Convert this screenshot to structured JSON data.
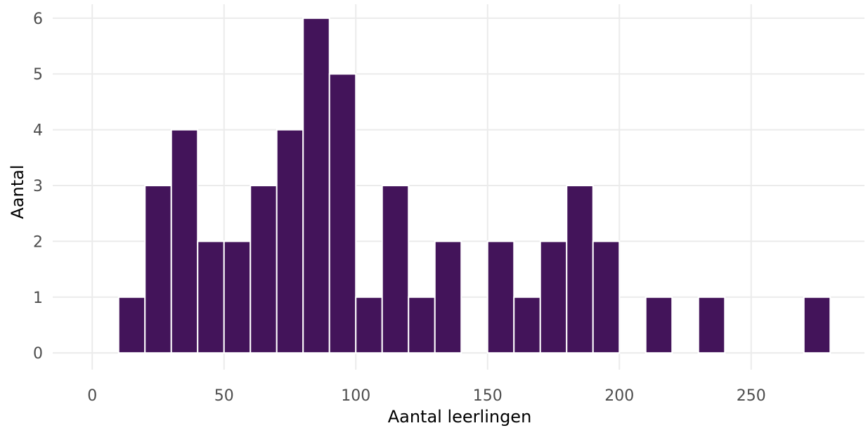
{
  "chart_data": {
    "type": "bar",
    "subtype": "histogram",
    "xlabel": "Aantal leerlingen",
    "ylabel": "Aantal",
    "xlim": [
      -15,
      293
    ],
    "ylim": [
      -0.3,
      6.25
    ],
    "x_ticks": [
      0,
      50,
      100,
      150,
      200,
      250
    ],
    "y_ticks": [
      0,
      1,
      2,
      3,
      4,
      5,
      6
    ],
    "grid": true,
    "bin_width": 10,
    "bins": [
      {
        "x_start": 0,
        "x_end": 10,
        "count": 0
      },
      {
        "x_start": 10,
        "x_end": 20,
        "count": 1
      },
      {
        "x_start": 20,
        "x_end": 30,
        "count": 3
      },
      {
        "x_start": 30,
        "x_end": 40,
        "count": 4
      },
      {
        "x_start": 40,
        "x_end": 50,
        "count": 2
      },
      {
        "x_start": 50,
        "x_end": 60,
        "count": 2
      },
      {
        "x_start": 60,
        "x_end": 70,
        "count": 3
      },
      {
        "x_start": 70,
        "x_end": 80,
        "count": 4
      },
      {
        "x_start": 80,
        "x_end": 90,
        "count": 6
      },
      {
        "x_start": 90,
        "x_end": 100,
        "count": 5
      },
      {
        "x_start": 100,
        "x_end": 110,
        "count": 1
      },
      {
        "x_start": 110,
        "x_end": 120,
        "count": 3
      },
      {
        "x_start": 120,
        "x_end": 130,
        "count": 1
      },
      {
        "x_start": 130,
        "x_end": 140,
        "count": 2
      },
      {
        "x_start": 140,
        "x_end": 150,
        "count": 0
      },
      {
        "x_start": 150,
        "x_end": 160,
        "count": 2
      },
      {
        "x_start": 160,
        "x_end": 170,
        "count": 1
      },
      {
        "x_start": 170,
        "x_end": 180,
        "count": 2
      },
      {
        "x_start": 180,
        "x_end": 190,
        "count": 3
      },
      {
        "x_start": 190,
        "x_end": 200,
        "count": 2
      },
      {
        "x_start": 200,
        "x_end": 210,
        "count": 0
      },
      {
        "x_start": 210,
        "x_end": 220,
        "count": 1
      },
      {
        "x_start": 220,
        "x_end": 230,
        "count": 0
      },
      {
        "x_start": 230,
        "x_end": 240,
        "count": 1
      },
      {
        "x_start": 240,
        "x_end": 250,
        "count": 0
      },
      {
        "x_start": 250,
        "x_end": 260,
        "count": 0
      },
      {
        "x_start": 260,
        "x_end": 270,
        "count": 0
      },
      {
        "x_start": 270,
        "x_end": 280,
        "count": 1
      }
    ],
    "colors": {
      "bar_fill": "#43145a",
      "bar_outline": "#ffffff",
      "grid": "#ebebeb",
      "tick_text": "#4d4d4d",
      "title_text": "#000000",
      "background": "#ffffff"
    }
  }
}
